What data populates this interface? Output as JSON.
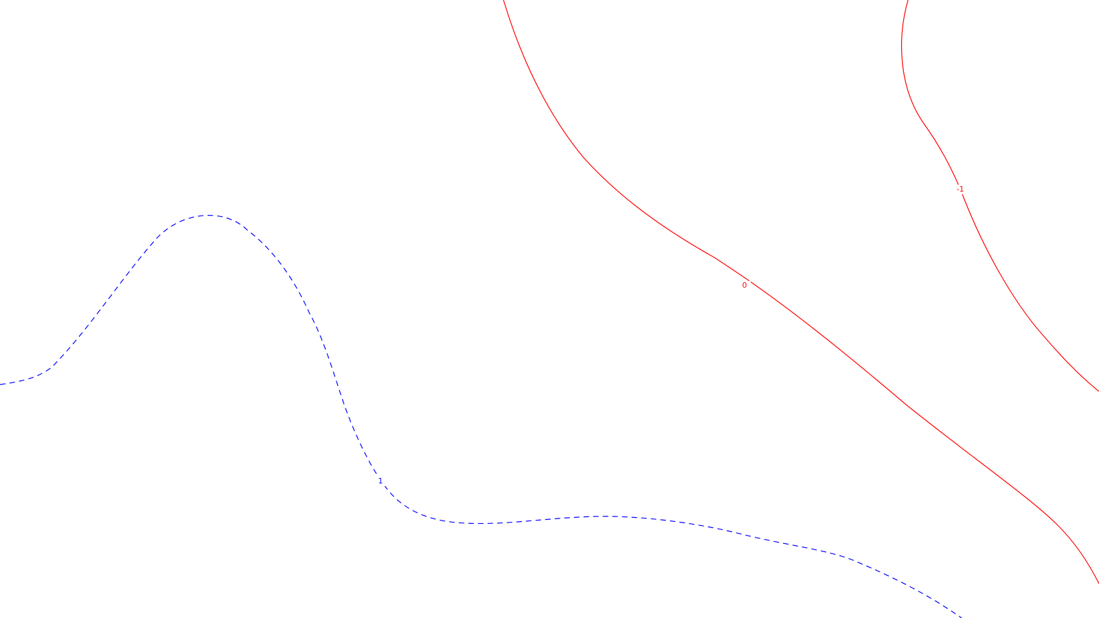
{
  "chart_data": {
    "type": "contour",
    "title": "",
    "xlabel": "",
    "ylabel": "",
    "grid": false,
    "colors": {
      "background": "#ffffff",
      "positive": "#0000ff",
      "zero": "#ff0000",
      "negative": "#ff0000"
    },
    "contours": [
      {
        "level": 0,
        "label": "0",
        "color": "#ff0000",
        "style": "solid"
      },
      {
        "level": -1,
        "label": "-1",
        "color": "#ff0000",
        "style": "solid"
      },
      {
        "level": 1,
        "label": "1",
        "color": "#0000ff",
        "style": "dashed"
      }
    ]
  }
}
